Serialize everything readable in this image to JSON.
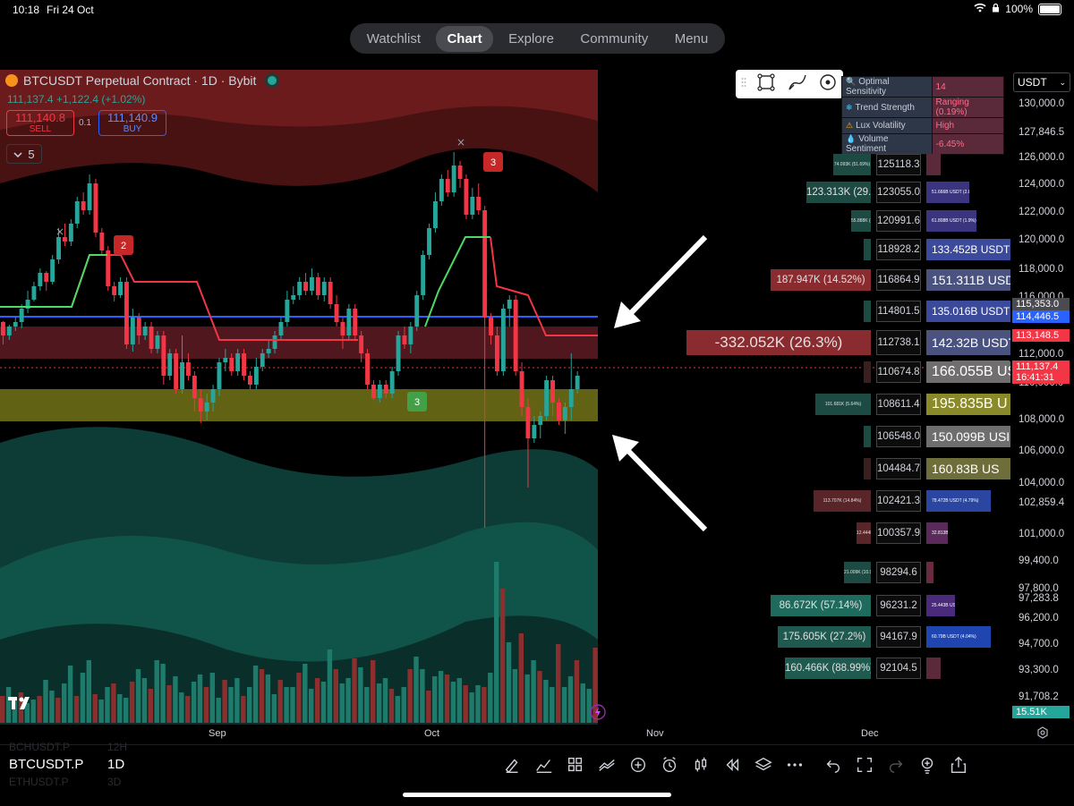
{
  "status_bar": {
    "time": "10:18",
    "date": "Fri 24 Oct",
    "battery": "100%"
  },
  "nav": {
    "tabs": [
      "Watchlist",
      "Chart",
      "Explore",
      "Community",
      "Menu"
    ],
    "active": "Chart"
  },
  "symbol": {
    "title": "BTCUSDT Perpetual Contract · 1D · Bybit",
    "last": "111,137.4",
    "change": "+1,122.4 (+1.02%)",
    "sell_price": "111,140.8",
    "sell_label": "SELL",
    "spread": "0.1",
    "buy_price": "111,140.9",
    "buy_label": "BUY",
    "indicator_count": "5"
  },
  "dashboard": [
    {
      "key": "Optimal Sensitivity",
      "value": "14",
      "icon": "magnifier-icon"
    },
    {
      "key": "Trend Strength",
      "value": "Ranging (0.19%)",
      "icon": "snowflake-icon"
    },
    {
      "key": "Lux Volatility",
      "value": "High",
      "icon": "warning-icon"
    },
    {
      "key": "Volume Sentiment",
      "value": "-6.45%",
      "icon": "droplet-icon"
    }
  ],
  "currency_select": "USDT",
  "price_scale": {
    "ticks": [
      "130,000.0",
      "127,846.5",
      "126,000.0",
      "124,000.0",
      "122,000.0",
      "120,000.0",
      "118,000.0",
      "116,000.0",
      "112,000.0",
      "110,000.0",
      "108,000.0",
      "106,000.0",
      "104,000.0",
      "102,859.4",
      "101,000.0",
      "99,400.0",
      "97,800.0",
      "97,283.8",
      "96,200.0",
      "94,700.0",
      "93,300.0",
      "91,708.2"
    ],
    "tags": [
      {
        "label": "115,353.0",
        "color": "#4a4b50"
      },
      {
        "label": "114,446.5",
        "color": "#2962ff"
      },
      {
        "label": "113,148.5",
        "color": "#f23645"
      },
      {
        "label": "111,137.4",
        "color": "#f23645"
      },
      {
        "label": "16:41:31",
        "color": "#f23645"
      },
      {
        "label": "15.51K",
        "color": "#26a69a"
      }
    ],
    "symbol_tag": "BTCUSDT.P"
  },
  "profile": [
    {
      "level": "125118.3",
      "left": "74.093K (51.69%)",
      "right": ""
    },
    {
      "level": "123055.0",
      "left": "123.313K (29.37%)",
      "right": "51.666B USDT (2.85%)"
    },
    {
      "level": "120991.6",
      "left": "55.888K (8.34%)",
      "right": "61.808B USDT (1.9%)"
    },
    {
      "level": "118928.2",
      "left": "",
      "right": "133.452B USDT (7"
    },
    {
      "level": "116864.9",
      "left": "187.947K (14.52%)",
      "right": "151.311B USDT"
    },
    {
      "level": "114801.5",
      "left": "",
      "right": "135.016B USDT ("
    },
    {
      "level": "112738.1",
      "left": "-332.052K (26.3%)",
      "right": "142.32B USDT"
    },
    {
      "level": "110674.8",
      "left": "",
      "right": "166.055B USI"
    },
    {
      "level": "108611.4",
      "left": "101.681K (5.64%)",
      "right": "195.835B U"
    },
    {
      "level": "106548.0",
      "left": "",
      "right": "150.099B USI"
    },
    {
      "level": "104484.7",
      "left": "",
      "right": "160.83B US"
    },
    {
      "level": "102421.3",
      "left": "113.707K (14.84%)",
      "right": "78.472B USDT (4.79%)"
    },
    {
      "level": "100357.9",
      "left": "12.444K",
      "right": "32.813B USDT"
    },
    {
      "level": "98294.6",
      "left": "21.009K (10.95%)",
      "right": ""
    },
    {
      "level": "96231.2",
      "left": "86.672K (57.14%)",
      "right": "25.443B USDT (1.04%)"
    },
    {
      "level": "94167.9",
      "left": "175.605K (27.2%)",
      "right": "60.79B USDT (4.04%)"
    },
    {
      "level": "92104.5",
      "left": "160.466K (88.99%)",
      "right": ""
    }
  ],
  "chart_labels": [
    {
      "text": "2",
      "kind": "sell"
    },
    {
      "text": "3",
      "kind": "sell"
    },
    {
      "text": "3",
      "kind": "buy"
    }
  ],
  "time_axis": [
    "Sep",
    "Oct",
    "Nov",
    "Dec"
  ],
  "bottom": {
    "symbol": "BTCUSDT.P",
    "interval": "1D",
    "ghost_rows": [
      [
        "BCHUSDT.P",
        "12H"
      ],
      [
        "ETHUSDT.P",
        "3D"
      ]
    ],
    "tools": [
      "draw-icon",
      "indicators-icon",
      "templates-icon",
      "compare-icon",
      "add-icon",
      "alert-icon",
      "candle-type-icon",
      "replay-icon",
      "layers-icon",
      "more-icon",
      "undo-icon",
      "fullscreen-icon",
      "redo-icon",
      "ideas-icon",
      "share-icon"
    ]
  },
  "logo": "TV"
}
